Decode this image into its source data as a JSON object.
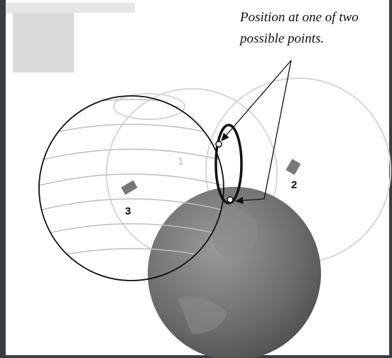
{
  "annotation": {
    "lines": [
      "Position at one of two",
      "possible points."
    ]
  },
  "satellites": [
    {
      "label": "1"
    },
    {
      "label": "2"
    },
    {
      "label": "3"
    }
  ]
}
